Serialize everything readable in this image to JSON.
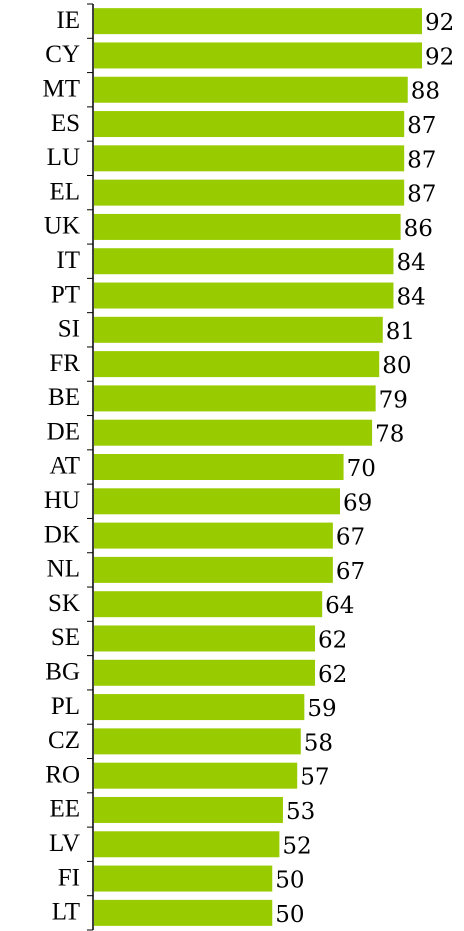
{
  "chart_data": {
    "type": "bar",
    "orientation": "horizontal",
    "categories": [
      "IE",
      "CY",
      "MT",
      "ES",
      "LU",
      "EL",
      "UK",
      "IT",
      "PT",
      "SI",
      "FR",
      "BE",
      "DE",
      "AT",
      "HU",
      "DK",
      "NL",
      "SK",
      "SE",
      "BG",
      "PL",
      "CZ",
      "RO",
      "EE",
      "LV",
      "FI",
      "LT"
    ],
    "values": [
      92,
      92,
      88,
      87,
      87,
      87,
      86,
      84,
      84,
      81,
      80,
      79,
      78,
      70,
      69,
      67,
      67,
      64,
      62,
      62,
      59,
      58,
      57,
      53,
      52,
      50,
      50
    ],
    "color": "#99cc00"
  }
}
